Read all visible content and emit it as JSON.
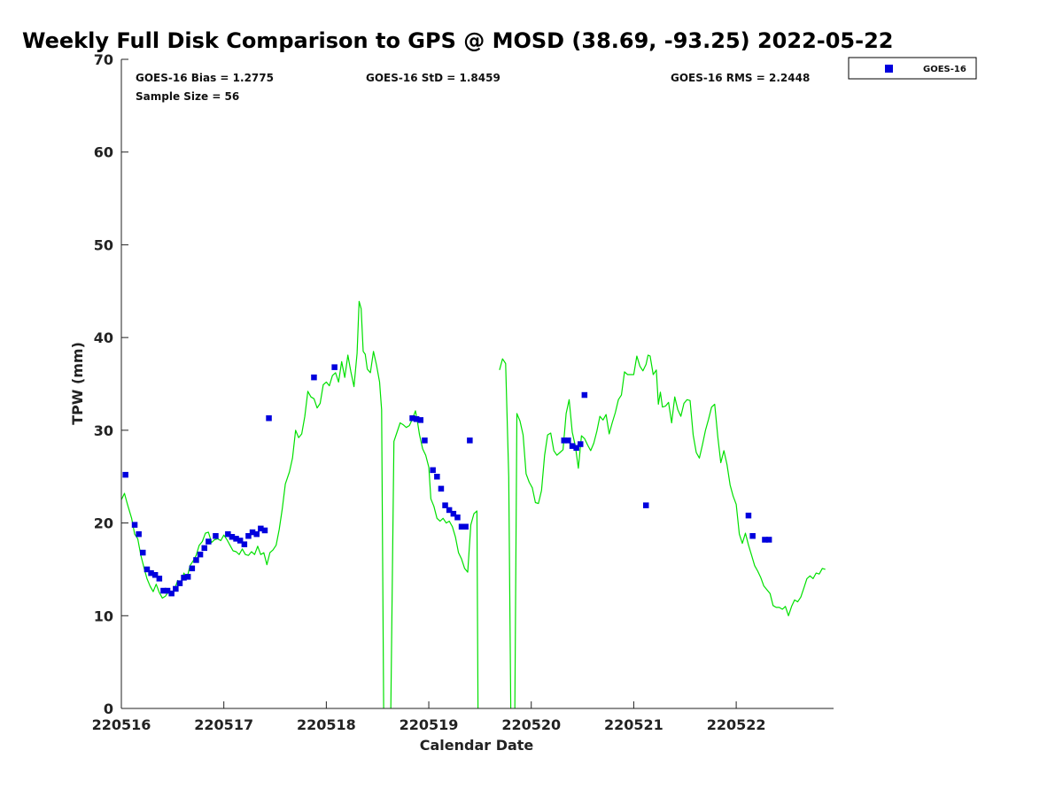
{
  "chart_data": {
    "type": "scatter",
    "title": "Weekly Full Disk Comparison to GPS @ MOSD (38.69, -93.25) 2022-05-22",
    "xlabel": "Calendar Date",
    "ylabel": "TPW (mm)",
    "xlim": [
      0,
      6.95
    ],
    "ylim": [
      0,
      70
    ],
    "xticks": [
      {
        "value": 0,
        "label": "220516"
      },
      {
        "value": 1,
        "label": "220517"
      },
      {
        "value": 2,
        "label": "220518"
      },
      {
        "value": 3,
        "label": "220519"
      },
      {
        "value": 4,
        "label": "220520"
      },
      {
        "value": 5,
        "label": "220521"
      },
      {
        "value": 6,
        "label": "220522"
      }
    ],
    "yticks": [
      0,
      10,
      20,
      30,
      40,
      50,
      60,
      70
    ],
    "stats": {
      "bias": "GOES-16 Bias = 1.2775",
      "std": "GOES-16 StD = 1.8459",
      "rms": "GOES-16 RMS = 2.2448",
      "sample": "Sample Size = 56"
    },
    "legend": {
      "label": "GOES-16",
      "position": "top-right, outside plot"
    },
    "series": [
      {
        "name": "GPS",
        "style": "line",
        "color": "#00e000",
        "segments": [
          [
            [
              0.0,
              22.5
            ],
            [
              0.03,
              23.2
            ],
            [
              0.06,
              22.0
            ],
            [
              0.1,
              20.5
            ],
            [
              0.13,
              18.8
            ],
            [
              0.16,
              18.3
            ],
            [
              0.19,
              16.5
            ],
            [
              0.22,
              15.2
            ],
            [
              0.25,
              14.0
            ],
            [
              0.28,
              13.2
            ],
            [
              0.31,
              12.6
            ],
            [
              0.34,
              13.4
            ],
            [
              0.37,
              12.5
            ],
            [
              0.4,
              11.9
            ],
            [
              0.43,
              12.1
            ],
            [
              0.46,
              12.6
            ],
            [
              0.49,
              12.3
            ],
            [
              0.52,
              12.9
            ],
            [
              0.55,
              13.8
            ],
            [
              0.58,
              13.3
            ],
            [
              0.61,
              14.6
            ],
            [
              0.64,
              14.0
            ],
            [
              0.67,
              15.4
            ],
            [
              0.7,
              15.9
            ],
            [
              0.73,
              16.5
            ],
            [
              0.76,
              17.6
            ],
            [
              0.79,
              18.0
            ],
            [
              0.82,
              18.9
            ],
            [
              0.85,
              19.0
            ],
            [
              0.88,
              17.9
            ],
            [
              0.91,
              18.2
            ],
            [
              0.94,
              18.3
            ],
            [
              0.97,
              18.1
            ],
            [
              1.0,
              18.7
            ],
            [
              1.03,
              18.2
            ],
            [
              1.06,
              17.6
            ],
            [
              1.09,
              17.0
            ],
            [
              1.12,
              16.9
            ],
            [
              1.15,
              16.6
            ],
            [
              1.18,
              17.2
            ],
            [
              1.21,
              16.6
            ],
            [
              1.24,
              16.5
            ],
            [
              1.27,
              16.9
            ],
            [
              1.3,
              16.6
            ],
            [
              1.33,
              17.5
            ],
            [
              1.36,
              16.6
            ],
            [
              1.39,
              16.8
            ],
            [
              1.42,
              15.5
            ],
            [
              1.45,
              16.8
            ],
            [
              1.48,
              17.1
            ],
            [
              1.51,
              17.6
            ],
            [
              1.54,
              19.3
            ],
            [
              1.57,
              21.5
            ],
            [
              1.6,
              24.2
            ],
            [
              1.64,
              25.5
            ],
            [
              1.67,
              27.0
            ],
            [
              1.7,
              30.0
            ],
            [
              1.73,
              29.2
            ],
            [
              1.76,
              29.6
            ],
            [
              1.79,
              31.5
            ],
            [
              1.82,
              34.2
            ],
            [
              1.85,
              33.6
            ],
            [
              1.88,
              33.4
            ],
            [
              1.91,
              32.4
            ],
            [
              1.94,
              32.9
            ],
            [
              1.97,
              34.9
            ],
            [
              2.0,
              35.2
            ],
            [
              2.03,
              34.8
            ],
            [
              2.06,
              35.9
            ],
            [
              2.09,
              36.2
            ],
            [
              2.12,
              35.2
            ],
            [
              2.15,
              37.4
            ],
            [
              2.18,
              35.7
            ],
            [
              2.21,
              38.1
            ],
            [
              2.24,
              36.3
            ],
            [
              2.27,
              34.7
            ],
            [
              2.3,
              38.3
            ],
            [
              2.32,
              43.9
            ],
            [
              2.34,
              43.1
            ],
            [
              2.36,
              38.5
            ],
            [
              2.38,
              38.2
            ],
            [
              2.4,
              36.6
            ],
            [
              2.43,
              36.2
            ],
            [
              2.46,
              38.5
            ],
            [
              2.49,
              37.0
            ],
            [
              2.52,
              35.2
            ],
            [
              2.54,
              32.2
            ],
            [
              2.56,
              0.0
            ]
          ],
          [
            [
              2.63,
              0.0
            ],
            [
              2.66,
              28.8
            ],
            [
              2.69,
              29.8
            ],
            [
              2.72,
              30.8
            ],
            [
              2.75,
              30.6
            ],
            [
              2.78,
              30.3
            ],
            [
              2.81,
              30.5
            ],
            [
              2.84,
              31.2
            ],
            [
              2.87,
              32.1
            ],
            [
              2.89,
              30.9
            ],
            [
              2.91,
              29.5
            ],
            [
              2.94,
              28.0
            ],
            [
              2.97,
              27.3
            ],
            [
              3.0,
              26.0
            ],
            [
              3.02,
              22.6
            ],
            [
              3.05,
              21.8
            ],
            [
              3.08,
              20.5
            ],
            [
              3.11,
              20.2
            ],
            [
              3.14,
              20.5
            ],
            [
              3.17,
              20.0
            ],
            [
              3.2,
              20.2
            ],
            [
              3.23,
              19.6
            ],
            [
              3.26,
              18.5
            ],
            [
              3.29,
              16.8
            ],
            [
              3.32,
              16.1
            ],
            [
              3.35,
              15.1
            ],
            [
              3.38,
              14.7
            ],
            [
              3.41,
              19.8
            ],
            [
              3.44,
              21.0
            ],
            [
              3.47,
              21.3
            ],
            [
              3.48,
              0.0
            ]
          ],
          [
            [
              3.69,
              36.5
            ],
            [
              3.72,
              37.7
            ],
            [
              3.75,
              37.2
            ],
            [
              3.78,
              25.0
            ],
            [
              3.8,
              0.0
            ]
          ],
          [
            [
              3.84,
              0.0
            ],
            [
              3.86,
              31.8
            ],
            [
              3.89,
              31.0
            ],
            [
              3.92,
              29.5
            ],
            [
              3.95,
              25.3
            ],
            [
              3.98,
              24.4
            ],
            [
              4.01,
              23.8
            ],
            [
              4.04,
              22.2
            ],
            [
              4.07,
              22.1
            ],
            [
              4.1,
              23.5
            ],
            [
              4.13,
              27.3
            ],
            [
              4.16,
              29.5
            ],
            [
              4.19,
              29.7
            ],
            [
              4.22,
              27.8
            ],
            [
              4.25,
              27.3
            ],
            [
              4.28,
              27.6
            ],
            [
              4.31,
              27.9
            ],
            [
              4.34,
              31.8
            ],
            [
              4.37,
              33.3
            ],
            [
              4.4,
              29.8
            ],
            [
              4.43,
              28.3
            ],
            [
              4.46,
              25.9
            ],
            [
              4.49,
              29.4
            ],
            [
              4.52,
              29.1
            ],
            [
              4.55,
              28.4
            ],
            [
              4.58,
              27.8
            ],
            [
              4.61,
              28.6
            ],
            [
              4.64,
              29.9
            ],
            [
              4.67,
              31.5
            ],
            [
              4.7,
              31.1
            ],
            [
              4.73,
              31.7
            ],
            [
              4.76,
              29.6
            ],
            [
              4.79,
              30.8
            ],
            [
              4.82,
              31.9
            ],
            [
              4.85,
              33.3
            ],
            [
              4.88,
              33.8
            ],
            [
              4.91,
              36.3
            ],
            [
              4.94,
              36.0
            ],
            [
              4.97,
              36.0
            ],
            [
              5.0,
              36.0
            ],
            [
              5.03,
              38.0
            ],
            [
              5.06,
              36.9
            ],
            [
              5.09,
              36.4
            ],
            [
              5.12,
              37.1
            ],
            [
              5.14,
              38.1
            ],
            [
              5.16,
              38.0
            ],
            [
              5.19,
              36.0
            ],
            [
              5.22,
              36.5
            ],
            [
              5.24,
              32.8
            ],
            [
              5.26,
              34.1
            ],
            [
              5.28,
              32.5
            ],
            [
              5.31,
              32.6
            ],
            [
              5.34,
              33.0
            ],
            [
              5.37,
              30.8
            ],
            [
              5.4,
              33.6
            ],
            [
              5.43,
              32.2
            ],
            [
              5.46,
              31.5
            ],
            [
              5.49,
              32.9
            ],
            [
              5.52,
              33.3
            ],
            [
              5.55,
              33.2
            ],
            [
              5.58,
              29.5
            ],
            [
              5.61,
              27.6
            ],
            [
              5.64,
              27.0
            ],
            [
              5.67,
              28.4
            ],
            [
              5.7,
              30.0
            ],
            [
              5.73,
              31.2
            ],
            [
              5.76,
              32.5
            ],
            [
              5.79,
              32.8
            ],
            [
              5.82,
              29.3
            ],
            [
              5.85,
              26.5
            ],
            [
              5.88,
              27.8
            ],
            [
              5.91,
              26.3
            ],
            [
              5.94,
              24.1
            ],
            [
              5.97,
              22.9
            ],
            [
              6.0,
              22.0
            ],
            [
              6.03,
              18.8
            ],
            [
              6.06,
              17.8
            ],
            [
              6.09,
              18.9
            ],
            [
              6.12,
              17.6
            ],
            [
              6.15,
              16.5
            ],
            [
              6.18,
              15.4
            ],
            [
              6.21,
              14.8
            ],
            [
              6.24,
              14.1
            ],
            [
              6.27,
              13.2
            ],
            [
              6.3,
              12.8
            ],
            [
              6.33,
              12.4
            ],
            [
              6.36,
              11.1
            ],
            [
              6.39,
              10.9
            ],
            [
              6.42,
              10.9
            ],
            [
              6.45,
              10.7
            ],
            [
              6.48,
              11.0
            ],
            [
              6.51,
              10.0
            ],
            [
              6.54,
              11.0
            ],
            [
              6.57,
              11.7
            ],
            [
              6.6,
              11.5
            ],
            [
              6.63,
              12.0
            ],
            [
              6.66,
              13.0
            ],
            [
              6.69,
              14.0
            ],
            [
              6.72,
              14.3
            ],
            [
              6.75,
              14.0
            ],
            [
              6.78,
              14.6
            ],
            [
              6.81,
              14.5
            ],
            [
              6.84,
              15.1
            ],
            [
              6.87,
              15.0
            ]
          ]
        ]
      },
      {
        "name": "GOES-16",
        "style": "markers",
        "color": "#0000dd",
        "x": [
          0.04,
          0.13,
          0.17,
          0.21,
          0.25,
          0.29,
          0.33,
          0.37,
          0.41,
          0.45,
          0.49,
          0.53,
          0.57,
          0.61,
          0.65,
          0.69,
          0.73,
          0.77,
          0.81,
          0.85,
          0.92,
          1.04,
          1.08,
          1.12,
          1.16,
          1.2,
          1.24,
          1.28,
          1.32,
          1.36,
          1.4,
          1.44,
          1.88,
          2.08,
          2.84,
          2.88,
          2.92,
          2.96,
          3.04,
          3.08,
          3.12,
          3.16,
          3.2,
          3.24,
          3.28,
          3.32,
          3.36,
          3.4,
          4.32,
          4.36,
          4.4,
          4.44,
          4.48,
          4.52,
          5.12,
          6.12,
          6.16,
          6.28,
          6.32
        ],
        "values": [
          25.2,
          19.8,
          18.8,
          16.8,
          15.0,
          14.6,
          14.4,
          14.0,
          12.7,
          12.7,
          12.4,
          12.9,
          13.5,
          14.1,
          14.2,
          15.1,
          16.0,
          16.6,
          17.3,
          18.0,
          18.6,
          18.8,
          18.5,
          18.3,
          18.1,
          17.7,
          18.6,
          19.0,
          18.8,
          19.4,
          19.2,
          31.3,
          35.7,
          36.8,
          31.3,
          31.2,
          31.1,
          28.9,
          25.7,
          25.0,
          23.7,
          21.9,
          21.4,
          21.0,
          20.6,
          19.6,
          19.6,
          28.9,
          28.9,
          28.9,
          28.3,
          28.1,
          28.5,
          33.8,
          21.9,
          20.8,
          18.6,
          18.2,
          18.2
        ]
      }
    ]
  }
}
